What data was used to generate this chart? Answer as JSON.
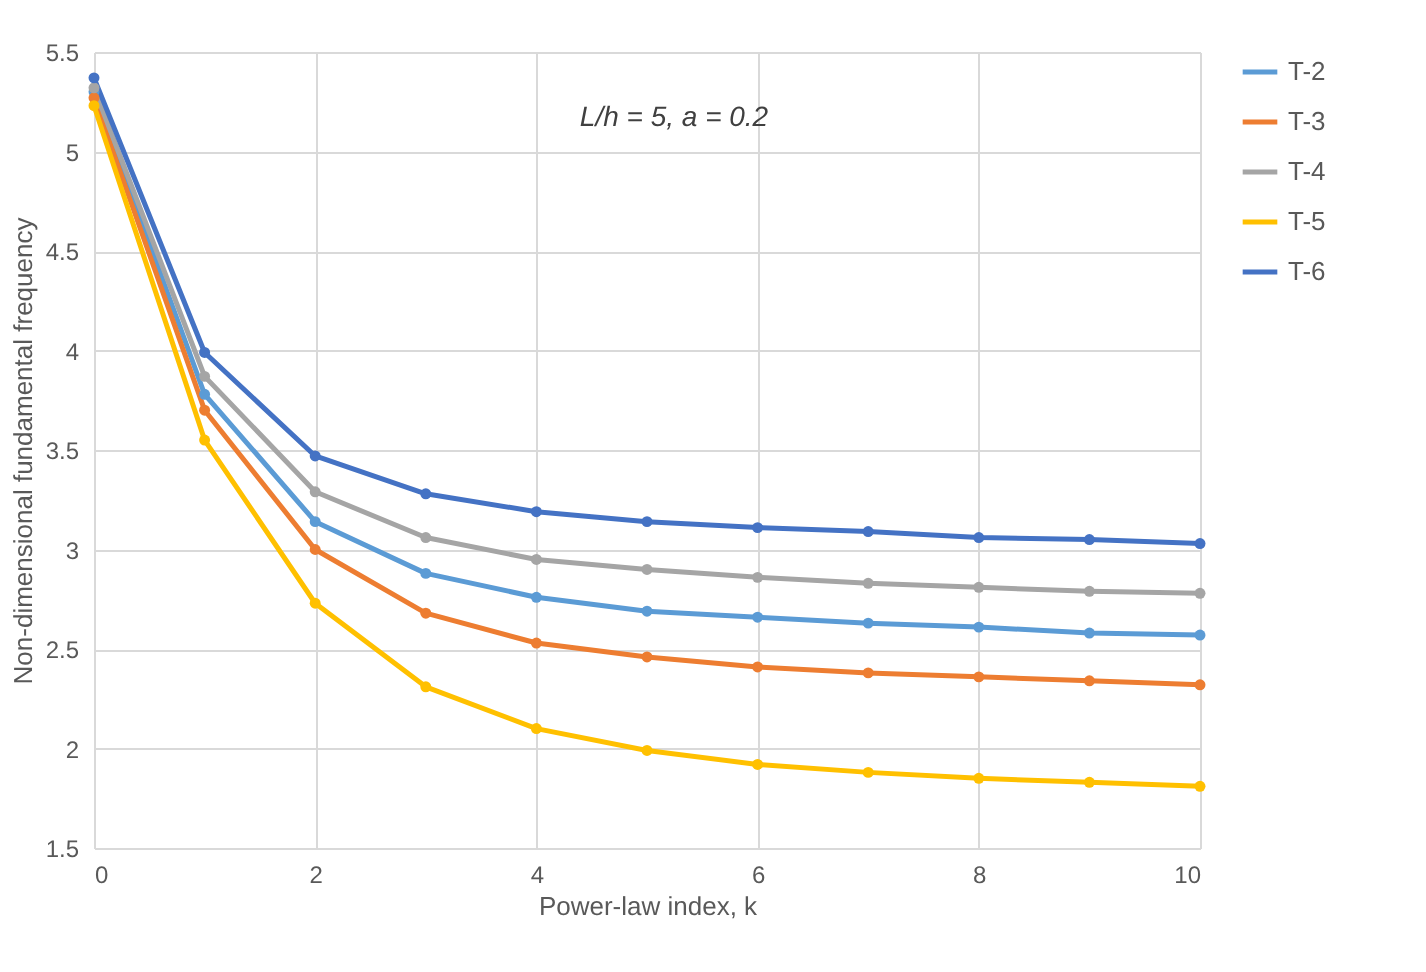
{
  "chart_data": {
    "type": "line",
    "xlabel": "Power-law index, k",
    "ylabel": "Non-dimensional fundamental frequency",
    "annotations": [
      "L/h = 5, a = 0.2"
    ],
    "x": [
      0,
      1,
      2,
      3,
      4,
      5,
      6,
      7,
      8,
      9,
      10
    ],
    "series": [
      {
        "name": "T-2",
        "color": "#5b9bd5",
        "values": [
          5.3,
          3.78,
          3.14,
          2.88,
          2.76,
          2.69,
          2.66,
          2.63,
          2.61,
          2.58,
          2.57
        ]
      },
      {
        "name": "T-3",
        "color": "#ed7d31",
        "values": [
          5.27,
          3.7,
          3.0,
          2.68,
          2.53,
          2.46,
          2.41,
          2.38,
          2.36,
          2.34,
          2.32
        ]
      },
      {
        "name": "T-4",
        "color": "#a5a5a5",
        "values": [
          5.32,
          3.87,
          3.29,
          3.06,
          2.95,
          2.9,
          2.86,
          2.83,
          2.81,
          2.79,
          2.78
        ]
      },
      {
        "name": "T-5",
        "color": "#ffc000",
        "values": [
          5.23,
          3.55,
          2.73,
          2.31,
          2.1,
          1.99,
          1.92,
          1.88,
          1.85,
          1.83,
          1.81
        ]
      },
      {
        "name": "T-6",
        "color": "#4472c4",
        "values": [
          5.37,
          3.99,
          3.47,
          3.28,
          3.19,
          3.14,
          3.11,
          3.09,
          3.06,
          3.05,
          3.03
        ]
      }
    ],
    "xlim": [
      0,
      10
    ],
    "xticks": [
      0,
      2,
      4,
      6,
      8,
      10
    ],
    "ylim": [
      1.5,
      5.5
    ],
    "yticks": [
      1.5,
      2,
      2.5,
      3,
      3.5,
      4,
      4.5,
      5,
      5.5
    ],
    "grid": true,
    "legend": "right",
    "marker": "circle",
    "line_style": "solid"
  }
}
